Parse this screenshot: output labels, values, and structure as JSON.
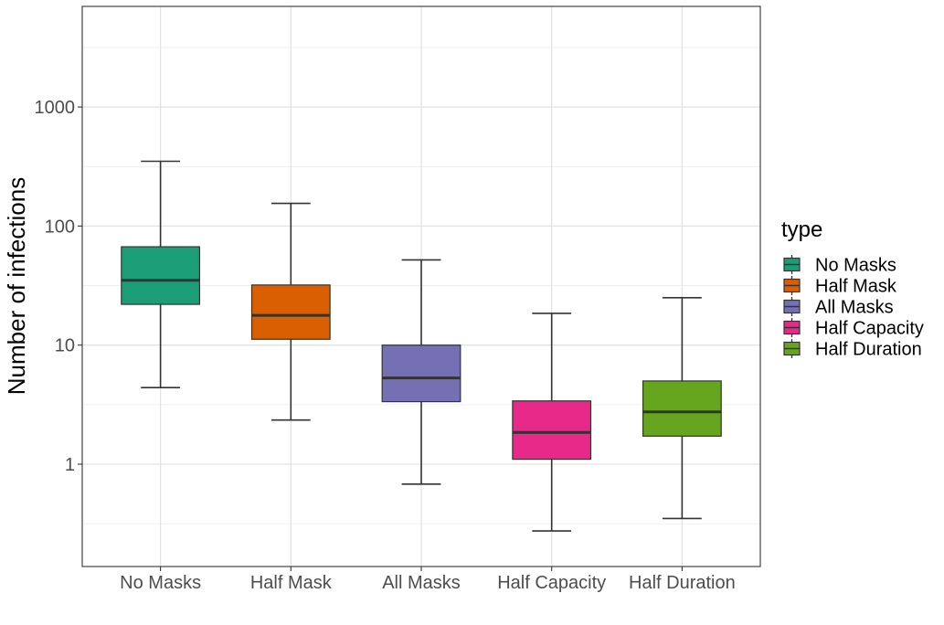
{
  "chart_data": {
    "type": "box",
    "ylabel": "Number of infections",
    "y_scale": "log10",
    "ylim": [
      0.14,
      7000
    ],
    "y_ticks": [
      1,
      10,
      100,
      1000
    ],
    "y_tick_labels": [
      "1",
      "10",
      "100",
      "1000"
    ],
    "grid": true,
    "legend": {
      "title": "type",
      "position": "right"
    },
    "categories": [
      "No Masks",
      "Half Mask",
      "All Masks",
      "Half Capacity",
      "Half Duration"
    ],
    "series": [
      {
        "name": "No Masks",
        "color": "#1b9e77",
        "whisker_low": 4.4,
        "q1": 22,
        "median": 35,
        "q3": 67,
        "whisker_high": 350
      },
      {
        "name": "Half Mask",
        "color": "#d95f02",
        "whisker_low": 2.35,
        "q1": 11.2,
        "median": 17.8,
        "q3": 32,
        "whisker_high": 155
      },
      {
        "name": "All Masks",
        "color": "#7570b3",
        "whisker_low": 0.68,
        "q1": 3.35,
        "median": 5.3,
        "q3": 10,
        "whisker_high": 52
      },
      {
        "name": "Half Capacity",
        "color": "#e7298a",
        "whisker_low": 0.275,
        "q1": 1.1,
        "median": 1.85,
        "q3": 3.4,
        "whisker_high": 18.5
      },
      {
        "name": "Half Duration",
        "color": "#66a61e",
        "whisker_low": 0.35,
        "q1": 1.72,
        "median": 2.75,
        "q3": 5,
        "whisker_high": 25
      }
    ]
  }
}
